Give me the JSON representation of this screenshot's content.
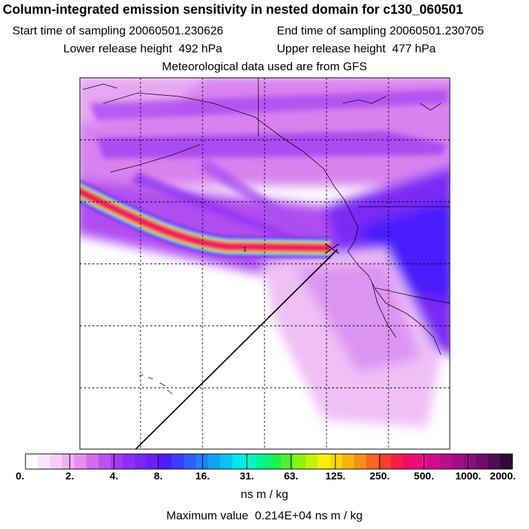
{
  "header": {
    "title": "Column-integrated emission sensitivity in nested domain for c130_060501",
    "start_label": "Start time of sampling",
    "start_value": "20060501.230626",
    "end_label": "End time of sampling",
    "end_value": "20060501.230705",
    "lower_label": "Lower release height",
    "lower_value": "492 hPa",
    "upper_label": "Upper release height",
    "upper_value": "477 hPa",
    "met_line": "Meteorological data used are from GFS"
  },
  "map": {
    "release_marker": "1"
  },
  "colorbar": {
    "tick_labels": [
      "0.",
      "2.",
      "4.",
      "8.",
      "16.",
      "31.",
      "63.",
      "125.",
      "250.",
      "500.",
      "1000.",
      "2000."
    ],
    "colors": [
      "#ffffff",
      "#fde6fb",
      "#f9cdf6",
      "#f2b1f3",
      "#e58ef0",
      "#d46cf0",
      "#c04ff1",
      "#a23cf3",
      "#8a2ff4",
      "#7a26f6",
      "#6a1ef9",
      "#4f1bfd",
      "#3a3dfd",
      "#2c5ffb",
      "#1d82f8",
      "#10a4f4",
      "#06c6f0",
      "#00e8ec",
      "#00f6c4",
      "#00f68d",
      "#18f353",
      "#4ef228",
      "#8cf10e",
      "#c6f00b",
      "#f5ef0b",
      "#fdd50b",
      "#fdb10b",
      "#fb8d12",
      "#f9661e",
      "#f63d2e",
      "#f31f47",
      "#f20c6a",
      "#ea0a85",
      "#d40a8e",
      "#bd0b8c",
      "#a30d86",
      "#870e7b",
      "#6b0f6a",
      "#4d0d53",
      "#300939"
    ],
    "units": "ns m / kg",
    "max_label": "Maximum value",
    "max_value": "0.214E+04 ns m / kg"
  }
}
